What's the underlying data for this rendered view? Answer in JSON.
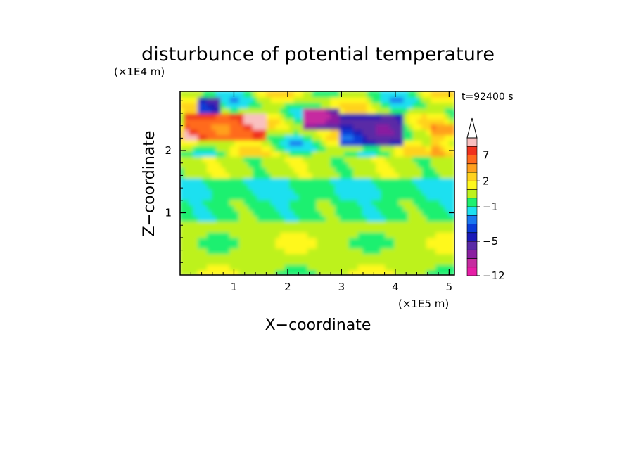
{
  "chart_data": {
    "type": "heatmap",
    "title": "disturbunce of potential temperature",
    "xlabel": "X−coordinate",
    "ylabel": "Z−coordinate",
    "x_unit": "(×1E5 m)",
    "y_unit": "(×1E4 m)",
    "time_label": "t=92400 s",
    "xlim": [
      0,
      5.1
    ],
    "ylim": [
      0,
      2.95
    ],
    "x_ticks": [
      1,
      2,
      3,
      4,
      5
    ],
    "y_ticks": [
      1,
      2
    ],
    "x_tick_labels": [
      "1",
      "2",
      "3",
      "4",
      "5"
    ],
    "y_tick_labels": [
      "1",
      "2"
    ],
    "colorbar": {
      "levels": [
        -12,
        -10,
        -8,
        -7,
        -5,
        -4,
        -3,
        -2,
        -1,
        0,
        1,
        2,
        3,
        5,
        7,
        8,
        10
      ],
      "tick_labels": [
        "−12",
        "−5",
        "−1",
        "2",
        "7"
      ],
      "tick_values": [
        -12,
        -5,
        -1,
        2,
        7
      ],
      "colors": [
        "#e61ea6",
        "#c62ca0",
        "#8a1fa0",
        "#5a2aa6",
        "#1a1ab8",
        "#0a3cd8",
        "#1a78f0",
        "#1ee0f0",
        "#1ef070",
        "#bdf21e",
        "#fff81e",
        "#ffd21e",
        "#ffa01e",
        "#ff6a1e",
        "#f0321e",
        "#f9c0c0"
      ],
      "extend": "max"
    },
    "grid": false,
    "field_description_regions": [
      {
        "x": [
          0.0,
          5.1
        ],
        "z": [
          0.0,
          0.9
        ],
        "value": 0.5
      },
      {
        "x": [
          0.0,
          5.1
        ],
        "z": [
          0.9,
          1.25
        ],
        "value": -0.5
      },
      {
        "x": [
          0.0,
          5.1
        ],
        "z": [
          1.25,
          1.6
        ],
        "value": -1.0
      },
      {
        "x": [
          0.0,
          5.1
        ],
        "z": [
          1.6,
          2.0
        ],
        "value": 0.5
      },
      {
        "x": [
          0.1,
          1.6
        ],
        "z": [
          2.2,
          2.6
        ],
        "value": 7.0
      },
      {
        "x": [
          3.0,
          4.2
        ],
        "z": [
          2.1,
          2.6
        ],
        "value": -5.0
      },
      {
        "x": [
          2.3,
          3.0
        ],
        "z": [
          2.3,
          2.7
        ],
        "value": -7.0
      },
      {
        "x": [
          0.3,
          0.8
        ],
        "z": [
          2.6,
          2.9
        ],
        "value": -5.0
      },
      {
        "x": [
          4.7,
          5.1
        ],
        "z": [
          1.9,
          2.4
        ],
        "value": 3.0
      }
    ]
  }
}
